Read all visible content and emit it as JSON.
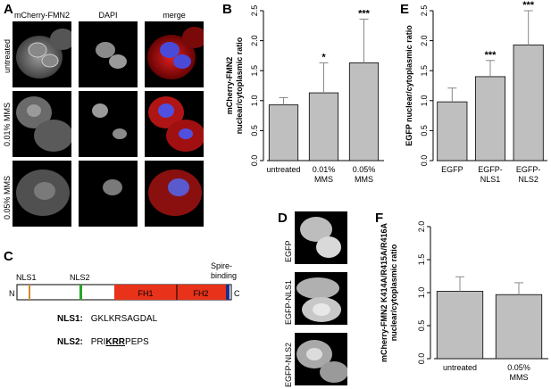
{
  "panel_labels": {
    "a": "A",
    "b": "B",
    "c": "C",
    "d": "D",
    "e": "E",
    "f": "F"
  },
  "panel_a": {
    "columns": [
      "mCherry-FMN2",
      "DAPI",
      "merge"
    ],
    "rows": [
      "untreated",
      "0.01% MMS",
      "0.05% MMS"
    ]
  },
  "panel_c": {
    "domains": [
      "NLS1",
      "NLS2",
      "FH1",
      "FH2"
    ],
    "spire_binding": [
      "Spire-",
      "binding"
    ],
    "n_term": "N",
    "c_term": "C",
    "nls1_label": "NLS1:",
    "nls1_seq": "GKLKRSAGDAL",
    "nls2_label": "NLS2:",
    "nls2_seq_pre": "PRI",
    "nls2_seq_bold": "KRR",
    "nls2_seq_post": "PEPS"
  },
  "panel_d": {
    "rows": [
      "EGFP",
      "EGFP-NLS1",
      "EGFP-NLS2"
    ]
  },
  "chart_data": [
    {
      "panel": "B",
      "type": "bar",
      "categories": [
        [
          "untreated"
        ],
        [
          "0.01%",
          "MMS"
        ],
        [
          "0.05%",
          "MMS"
        ]
      ],
      "values": [
        0.93,
        1.13,
        1.63
      ],
      "errors": [
        0.12,
        0.5,
        0.73
      ],
      "significance": [
        "",
        "*",
        "***"
      ],
      "ylabel": [
        "mCherry-FMN2",
        "nuclear/cytoplasmic ratio"
      ],
      "ylim": [
        0,
        2.5
      ],
      "yticks": [
        "0.0",
        "0.5",
        "1.0",
        "1.5",
        "2.0",
        "2.5"
      ],
      "bar_color": "#bfbfbf"
    },
    {
      "panel": "E",
      "type": "bar",
      "categories": [
        [
          "EGFP"
        ],
        [
          "EGFP-",
          "NLS1"
        ],
        [
          "EGFP-",
          "NLS2"
        ]
      ],
      "values": [
        0.98,
        1.4,
        1.93
      ],
      "errors": [
        0.23,
        0.27,
        0.57
      ],
      "significance": [
        "",
        "***",
        "***"
      ],
      "ylabel": [
        "EGFP nuclear/cytoplasmic ratio"
      ],
      "ylim": [
        0,
        2.5
      ],
      "yticks": [
        "0.0",
        "0.5",
        "1.0",
        "1.5",
        "2.0",
        "2.5"
      ],
      "bar_color": "#bfbfbf"
    },
    {
      "panel": "F",
      "type": "bar",
      "categories": [
        [
          "untreated"
        ],
        [
          "0.05%",
          "MMS"
        ]
      ],
      "values": [
        1.02,
        0.97
      ],
      "errors": [
        0.22,
        0.18
      ],
      "significance": [
        "",
        ""
      ],
      "ylabel": [
        "mCherry-FMN2 K414A/R415A/R416A",
        "nuclear/cytoplasmic ratio"
      ],
      "ylim": [
        0,
        2.0
      ],
      "yticks": [
        "0.0",
        "0.5",
        "1.0",
        "1.5",
        "2.0"
      ],
      "bar_color": "#bfbfbf"
    }
  ]
}
